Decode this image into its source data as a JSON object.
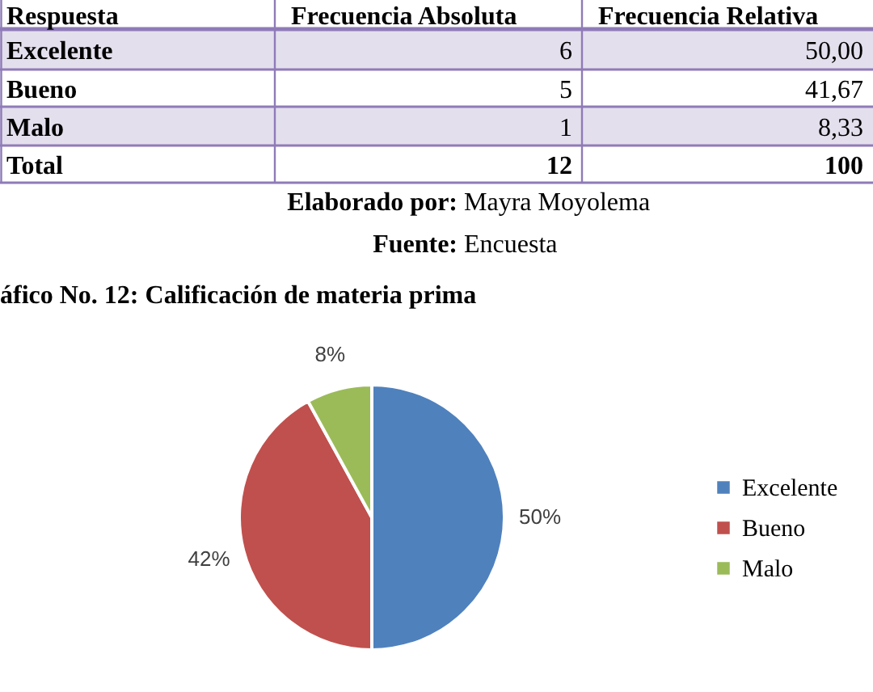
{
  "chart_data": [
    {
      "type": "other",
      "annotations": [
        "Respuesta",
        "Frecuencia Absoluta",
        "Frecuencia Relativa",
        "Excelente",
        "6",
        "50,00",
        "Bueno",
        "5",
        "41,67",
        "Malo",
        "1",
        "8,33",
        "Total",
        "12",
        "100",
        "Elaborado por:",
        "Mayra Moyolema",
        "Fuente:",
        "Encuesta"
      ]
    },
    {
      "type": "pie",
      "title": "áfico No.  12: Calificación de materia prima",
      "categories": [
        "Excelente",
        "Bueno",
        "Malo"
      ],
      "values": [
        50,
        42,
        8
      ],
      "value_labels": [
        "50%",
        "42%",
        "8%"
      ],
      "colors": [
        "#4f81bd",
        "#c0504d",
        "#9bbb59"
      ],
      "legend": "right"
    }
  ]
}
